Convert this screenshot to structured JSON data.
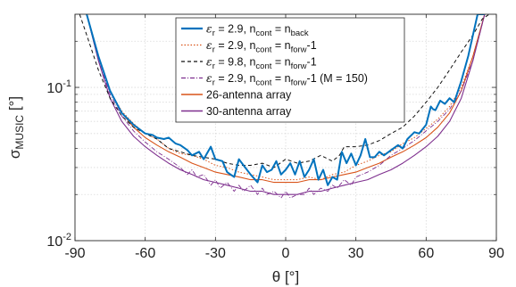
{
  "chart_data": {
    "type": "line",
    "xlabel": "θ [°]",
    "ylabel_main": "σ",
    "ylabel_sub": "MUSIC",
    "ylabel_unit": "[°]",
    "y_scale": "log",
    "xlim": [
      -90,
      90
    ],
    "ylim": [
      0.01,
      0.3
    ],
    "x_ticks": [
      -90,
      -60,
      -30,
      0,
      30,
      60,
      90
    ],
    "x_tick_labels": [
      "-90",
      "-60",
      "-30",
      "0",
      "30",
      "60",
      "90"
    ],
    "y_ticks": [
      0.01,
      0.1
    ],
    "y_tick_labels": [
      {
        "base": "10",
        "exp": "-2"
      },
      {
        "base": "10",
        "exp": "-1"
      }
    ],
    "grid": true,
    "legend_placement": "top-center",
    "series": [
      {
        "name_parts": [
          {
            "t": "ε",
            "s": "sym"
          },
          {
            "t": "r",
            "s": "sub"
          },
          {
            "t": " = 2.9, n"
          },
          {
            "t": "cont",
            "s": "sub"
          },
          {
            "t": " = n"
          },
          {
            "t": "back",
            "s": "sub"
          }
        ],
        "color": "#0072BD",
        "dash": "",
        "width": 2.0,
        "x": [
          -85,
          -80,
          -75,
          -70,
          -65,
          -60,
          -57,
          -55,
          -52,
          -50,
          -47,
          -45,
          -42,
          -40,
          -37,
          -35,
          -32,
          -30,
          -27,
          -25,
          -22,
          -20,
          -18,
          -15,
          -12,
          -10,
          -8,
          -6,
          -4,
          -2,
          0,
          2,
          4,
          6,
          8,
          10,
          12,
          14,
          16,
          18,
          20,
          22,
          24,
          26,
          28,
          30,
          32,
          34,
          36,
          38,
          40,
          42,
          45,
          48,
          50,
          52,
          55,
          57,
          60,
          62,
          63,
          64,
          66,
          68,
          70,
          72,
          75,
          78,
          80,
          82,
          85
        ],
        "y": [
          0.3,
          0.16,
          0.095,
          0.068,
          0.057,
          0.05,
          0.049,
          0.047,
          0.046,
          0.047,
          0.043,
          0.042,
          0.039,
          0.036,
          0.038,
          0.034,
          0.041,
          0.034,
          0.033,
          0.028,
          0.026,
          0.034,
          0.031,
          0.027,
          0.024,
          0.031,
          0.028,
          0.029,
          0.033,
          0.027,
          0.029,
          0.032,
          0.027,
          0.033,
          0.026,
          0.029,
          0.034,
          0.025,
          0.029,
          0.023,
          0.026,
          0.025,
          0.038,
          0.032,
          0.037,
          0.031,
          0.036,
          0.046,
          0.035,
          0.035,
          0.038,
          0.036,
          0.039,
          0.042,
          0.04,
          0.046,
          0.051,
          0.05,
          0.057,
          0.075,
          0.072,
          0.071,
          0.082,
          0.078,
          0.085,
          0.08,
          0.11,
          0.16,
          0.22,
          0.3,
          0.3
        ]
      },
      {
        "name_parts": [
          {
            "t": "ε",
            "s": "sym"
          },
          {
            "t": "r",
            "s": "sub"
          },
          {
            "t": " = 2.9, n"
          },
          {
            "t": "cont",
            "s": "sub"
          },
          {
            "t": " = n"
          },
          {
            "t": "forw",
            "s": "sub"
          },
          {
            "t": "-1"
          }
        ],
        "color": "#D95319",
        "dash": "1.5 2",
        "width": 1.0,
        "x": [
          -85,
          -80,
          -75,
          -70,
          -65,
          -60,
          -55,
          -50,
          -45,
          -40,
          -35,
          -30,
          -25,
          -20,
          -15,
          -10,
          -5,
          0,
          5,
          10,
          15,
          20,
          25,
          30,
          35,
          40,
          45,
          50,
          55,
          60,
          65,
          70,
          75,
          80,
          85
        ],
        "y": [
          0.3,
          0.16,
          0.095,
          0.07,
          0.058,
          0.05,
          0.046,
          0.04,
          0.037,
          0.036,
          0.034,
          0.031,
          0.03,
          0.028,
          0.027,
          0.026,
          0.025,
          0.025,
          0.025,
          0.026,
          0.025,
          0.027,
          0.028,
          0.031,
          0.033,
          0.036,
          0.038,
          0.043,
          0.047,
          0.054,
          0.062,
          0.075,
          0.1,
          0.16,
          0.3
        ]
      },
      {
        "name_parts": [
          {
            "t": "ε",
            "s": "sym"
          },
          {
            "t": "r",
            "s": "sub"
          },
          {
            "t": " = 9.8, n"
          },
          {
            "t": "cont",
            "s": "sub"
          },
          {
            "t": " = n"
          },
          {
            "t": "forw",
            "s": "sub"
          },
          {
            "t": "-1"
          }
        ],
        "color": "#111111",
        "dash": "4 3",
        "width": 1.0,
        "x": [
          -88,
          -85,
          -80,
          -75,
          -70,
          -65,
          -60,
          -55,
          -50,
          -45,
          -40,
          -35,
          -30,
          -25,
          -20,
          -15,
          -10,
          -5,
          0,
          5,
          10,
          15,
          20,
          23,
          25,
          30,
          35,
          40,
          45,
          50,
          55,
          60,
          65,
          70,
          75,
          80,
          84,
          87
        ],
        "y": [
          0.3,
          0.22,
          0.13,
          0.085,
          0.065,
          0.055,
          0.05,
          0.046,
          0.04,
          0.038,
          0.036,
          0.035,
          0.034,
          0.032,
          0.031,
          0.031,
          0.032,
          0.03,
          0.034,
          0.032,
          0.033,
          0.036,
          0.033,
          0.036,
          0.041,
          0.041,
          0.042,
          0.045,
          0.05,
          0.055,
          0.065,
          0.08,
          0.1,
          0.13,
          0.17,
          0.22,
          0.28,
          0.3
        ]
      },
      {
        "name_parts": [
          {
            "t": "ε",
            "s": "sym"
          },
          {
            "t": "r",
            "s": "sub"
          },
          {
            "t": " = 2.9, n"
          },
          {
            "t": "cont",
            "s": "sub"
          },
          {
            "t": " = n"
          },
          {
            "t": "forw",
            "s": "sub"
          },
          {
            "t": "-1 (M = 150)"
          }
        ],
        "color": "#7E2F8E",
        "dash": "5 2 1 2",
        "width": 0.9,
        "x": [
          -85,
          -80,
          -75,
          -70,
          -65,
          -60,
          -55,
          -50,
          -45,
          -42,
          -40,
          -38,
          -35,
          -32,
          -30,
          -28,
          -25,
          -22,
          -20,
          -18,
          -15,
          -12,
          -10,
          -8,
          -5,
          -2,
          0,
          2,
          5,
          8,
          10,
          12,
          15,
          18,
          20,
          22,
          25,
          28,
          30,
          35,
          40,
          45,
          50,
          55,
          60,
          65,
          70,
          75,
          80,
          85
        ],
        "y": [
          0.3,
          0.15,
          0.09,
          0.065,
          0.052,
          0.044,
          0.038,
          0.034,
          0.03,
          0.027,
          0.029,
          0.026,
          0.027,
          0.023,
          0.025,
          0.022,
          0.024,
          0.021,
          0.023,
          0.021,
          0.023,
          0.02,
          0.022,
          0.02,
          0.021,
          0.019,
          0.021,
          0.019,
          0.02,
          0.02,
          0.022,
          0.02,
          0.022,
          0.021,
          0.023,
          0.022,
          0.025,
          0.023,
          0.026,
          0.028,
          0.031,
          0.036,
          0.04,
          0.045,
          0.052,
          0.06,
          0.072,
          0.095,
          0.15,
          0.3
        ]
      },
      {
        "name_parts": [
          {
            "t": "26-antenna array"
          }
        ],
        "color": "#D95319",
        "dash": "",
        "width": 1.1,
        "x": [
          -85,
          -80,
          -75,
          -70,
          -65,
          -60,
          -55,
          -50,
          -45,
          -40,
          -35,
          -30,
          -25,
          -20,
          -15,
          -10,
          -5,
          0,
          5,
          10,
          15,
          20,
          25,
          30,
          35,
          40,
          45,
          50,
          55,
          60,
          65,
          70,
          75,
          80,
          85
        ],
        "y": [
          0.3,
          0.16,
          0.095,
          0.068,
          0.055,
          0.047,
          0.042,
          0.038,
          0.035,
          0.032,
          0.03,
          0.028,
          0.027,
          0.026,
          0.025,
          0.025,
          0.024,
          0.024,
          0.024,
          0.025,
          0.025,
          0.026,
          0.027,
          0.028,
          0.03,
          0.032,
          0.035,
          0.038,
          0.042,
          0.047,
          0.055,
          0.068,
          0.095,
          0.16,
          0.3
        ]
      },
      {
        "name_parts": [
          {
            "t": "30-antenna array"
          }
        ],
        "color": "#7E2F8E",
        "dash": "",
        "width": 1.1,
        "x": [
          -85,
          -80,
          -75,
          -70,
          -65,
          -60,
          -55,
          -50,
          -45,
          -40,
          -35,
          -30,
          -25,
          -20,
          -15,
          -10,
          -5,
          0,
          5,
          10,
          15,
          20,
          25,
          30,
          35,
          40,
          45,
          50,
          55,
          60,
          65,
          70,
          75,
          80,
          85
        ],
        "y": [
          0.3,
          0.15,
          0.085,
          0.06,
          0.048,
          0.041,
          0.036,
          0.032,
          0.029,
          0.027,
          0.025,
          0.024,
          0.023,
          0.022,
          0.021,
          0.021,
          0.02,
          0.02,
          0.02,
          0.021,
          0.021,
          0.022,
          0.023,
          0.024,
          0.025,
          0.027,
          0.029,
          0.032,
          0.036,
          0.041,
          0.048,
          0.06,
          0.085,
          0.15,
          0.3
        ]
      }
    ]
  }
}
